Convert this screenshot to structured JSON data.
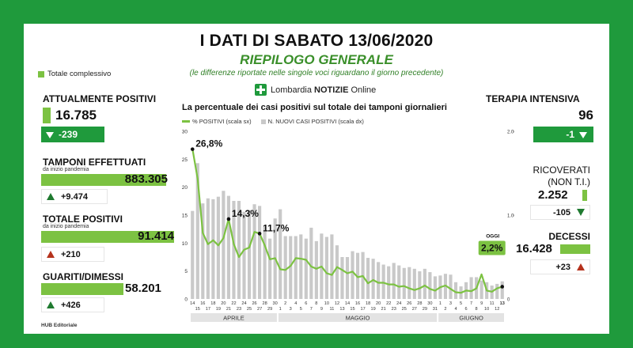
{
  "header": {
    "title": "I DATI DI SABATO 13/06/2020",
    "subtitle": "RIEPILOGO GENERALE",
    "note": "(le differenze riportate nelle singole voci riguardano il giorno precedente)",
    "legend_total": "Totale complessivo",
    "logo_text_a": "Lombardia ",
    "logo_text_b": "NOTIZIE",
    "logo_text_c": " Online"
  },
  "left_stats": {
    "positivi": {
      "label": "ATTUALMENTE POSITIVI",
      "value": "16.785",
      "delta": "-239"
    },
    "tamponi": {
      "label": "TAMPONI EFFETTUATI",
      "sub": "da inizio pandemia",
      "value": "883.305",
      "delta": "+9.474"
    },
    "totale": {
      "label": "TOTALE POSITIVI",
      "sub": "da inizio pandemia",
      "value": "91.414",
      "delta": "+210"
    },
    "guariti": {
      "label": "GUARITI/DIMESSI",
      "value": "58.201",
      "delta": "+426"
    }
  },
  "right_stats": {
    "terapia": {
      "label": "TERAPIA INTENSIVA",
      "value": "96",
      "delta": "-1"
    },
    "ricoverati": {
      "label": "RICOVERATI",
      "label2": "(NON T.I.)",
      "value": "2.252",
      "delta": "-105"
    },
    "decessi": {
      "label": "DECESSI",
      "value": "16.428",
      "delta": "+23"
    }
  },
  "footer": "HUB Editoriale",
  "colors": {
    "brand_green": "#1f9a3c",
    "light_green": "#7cc242",
    "bar_grey": "#c9c9c9",
    "red_arrow": "#b5321c"
  },
  "chart_data": {
    "type": "line",
    "title": "La percentuale dei casi positivi sul totale dei tamponi giornalieri",
    "legend": [
      "% POSITIVI (scala sx)",
      "N. NUOVI CASI POSITIVI (scala dx)"
    ],
    "y_left_ticks": [
      "0",
      "5",
      "10",
      "15",
      "20",
      "25",
      "30"
    ],
    "y_left_range": [
      0,
      30
    ],
    "y_right_ticks": [
      "0",
      "1.000",
      "2.000"
    ],
    "y_right_range": [
      0,
      2000
    ],
    "x_ticks": [
      "14",
      "15",
      "16",
      "17",
      "18",
      "19",
      "20",
      "21",
      "22",
      "23",
      "24",
      "25",
      "26",
      "27",
      "28",
      "29",
      "30",
      "1",
      "2",
      "3",
      "4",
      "5",
      "6",
      "7",
      "8",
      "9",
      "10",
      "11",
      "12",
      "13",
      "14",
      "15",
      "16",
      "17",
      "18",
      "19",
      "20",
      "21",
      "22",
      "23",
      "24",
      "25",
      "26",
      "27",
      "28",
      "29",
      "30",
      "31",
      "1",
      "2",
      "3",
      "4",
      "5",
      "6",
      "7",
      "8",
      "9",
      "10",
      "11",
      "12",
      "13"
    ],
    "months": [
      "APRILE",
      "MAGGIO",
      "GIUGNO"
    ],
    "series": [
      {
        "name": "% POSITIVI (scala sx)",
        "values": [
          26.8,
          21.5,
          11.8,
          9.8,
          10.5,
          9.6,
          10.9,
          14.3,
          9.8,
          7.5,
          8.8,
          9.2,
          12.0,
          11.7,
          9.6,
          7.1,
          7.3,
          5.3,
          5.2,
          5.9,
          7.3,
          7.2,
          7.0,
          5.8,
          5.4,
          5.8,
          4.6,
          4.3,
          5.7,
          5.2,
          4.6,
          4.9,
          3.9,
          4.1,
          2.8,
          3.4,
          2.9,
          2.9,
          2.6,
          2.6,
          2.2,
          2.3,
          1.9,
          1.6,
          1.9,
          2.4,
          1.8,
          1.5,
          2.1,
          2.4,
          1.8,
          1.2,
          1.1,
          1.5,
          1.4,
          1.9,
          4.4,
          1.5,
          1.3,
          1.9,
          2.2
        ]
      },
      {
        "name": "N. NUOVI CASI POSITIVI (scala dx)",
        "values": [
          1050,
          1620,
          1140,
          1200,
          1190,
          1220,
          1290,
          1230,
          1170,
          1170,
          1040,
          1060,
          1130,
          1110,
          860,
          720,
          960,
          1070,
          750,
          750,
          750,
          770,
          720,
          850,
          690,
          780,
          740,
          770,
          640,
          500,
          500,
          570,
          550,
          560,
          490,
          480,
          440,
          410,
          390,
          430,
          400,
          370,
          380,
          360,
          330,
          360,
          320,
          270,
          280,
          300,
          290,
          200,
          150,
          200,
          260,
          260,
          220,
          200,
          160,
          180,
          210
        ]
      }
    ],
    "annotations": [
      "26,8%",
      "14,3%",
      "11,7%"
    ],
    "today_label": "OGGI",
    "today_value": "2,2%"
  }
}
